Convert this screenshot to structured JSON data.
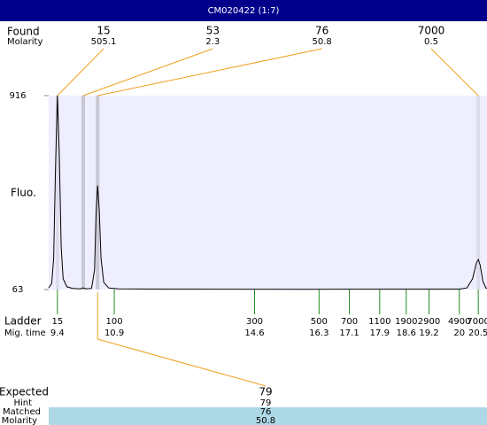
{
  "title": "CM020422 (1:7)",
  "chart_data": {
    "type": "line",
    "y_label": "Fluo.",
    "xlim": [
      9.17,
      20.73
    ],
    "ylim": [
      63,
      916
    ],
    "yticks": [
      916,
      63
    ],
    "series": [
      {
        "color": "#000000",
        "x": [
          9.17,
          9.25,
          9.3,
          9.35,
          9.4,
          9.45,
          9.5,
          9.55,
          9.65,
          9.8,
          10.0,
          10.08,
          10.15,
          10.3,
          10.38,
          10.42,
          10.46,
          10.5,
          10.55,
          10.62,
          10.75,
          11,
          12,
          16,
          20,
          20.2,
          20.35,
          20.45,
          20.5,
          20.55,
          20.62,
          20.7,
          20.73
        ],
        "values": [
          70,
          90,
          200,
          600,
          916,
          650,
          250,
          110,
          75,
          68,
          66,
          70,
          66,
          68,
          150,
          400,
          520,
          420,
          200,
          95,
          70,
          66,
          65,
          64,
          65,
          70,
          110,
          180,
          195,
          170,
          100,
          70,
          68
        ]
      }
    ]
  },
  "found": {
    "label": "Found",
    "sublabel": "Molarity",
    "peaks": [
      {
        "size": 15,
        "molarity": 505.1,
        "time": 9.4
      },
      {
        "size": 53,
        "molarity": 2.3,
        "time": 10.08
      },
      {
        "size": 76,
        "molarity": 50.8,
        "time": 10.46
      },
      {
        "size": 7000,
        "molarity": 0.5,
        "time": 20.5
      }
    ]
  },
  "ladder": {
    "label": "Ladder",
    "sublabel": "Mig. time",
    "sizes": [
      15,
      100,
      300,
      500,
      700,
      1100,
      1900,
      2900,
      4900,
      7000
    ],
    "times": [
      9.4,
      10.9,
      14.6,
      16.3,
      17.1,
      17.9,
      18.6,
      19.2,
      20,
      20.5
    ]
  },
  "expected": {
    "expected_label": "Expected",
    "expected": 79,
    "hint_label": "Hint",
    "hint": 79,
    "matched_label": "Matched",
    "matched": 76,
    "molarity_label": "Molarity",
    "molarity": 50.8
  }
}
